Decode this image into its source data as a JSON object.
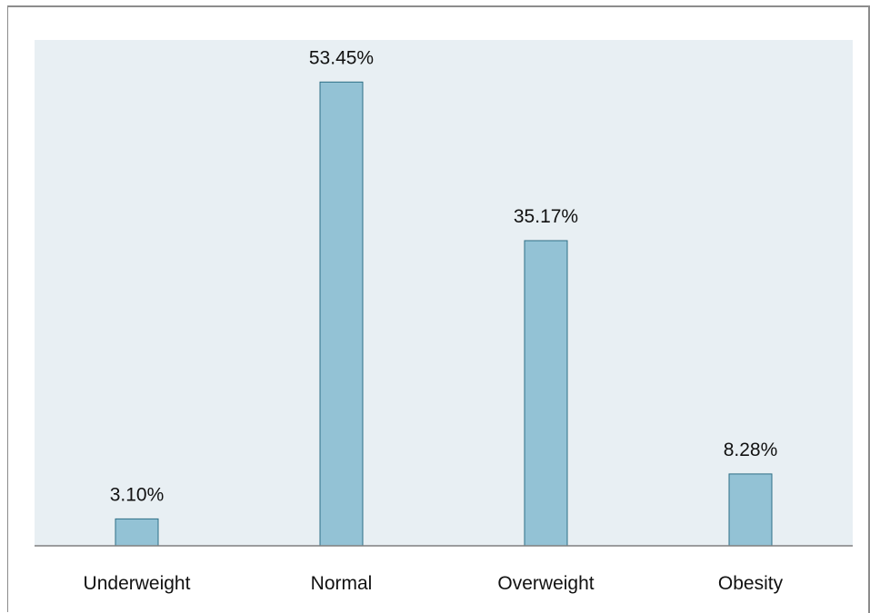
{
  "chart_data": {
    "type": "bar",
    "title": "",
    "xlabel": "",
    "ylabel": "",
    "categories": [
      "Underweight",
      "Normal",
      "Overweight",
      "Obesity"
    ],
    "values": [
      3.1,
      53.45,
      35.17,
      8.28
    ],
    "data_labels": [
      "3.10%",
      "53.45%",
      "35.17%",
      "8.28%"
    ],
    "unit": "%",
    "ylim": [
      0,
      58.3
    ],
    "grid": false,
    "legend": "none",
    "colors": {
      "bar_fill": "#93c2d5",
      "bar_stroke": "#2e6f86",
      "plot_background": "#e8eff3"
    }
  }
}
